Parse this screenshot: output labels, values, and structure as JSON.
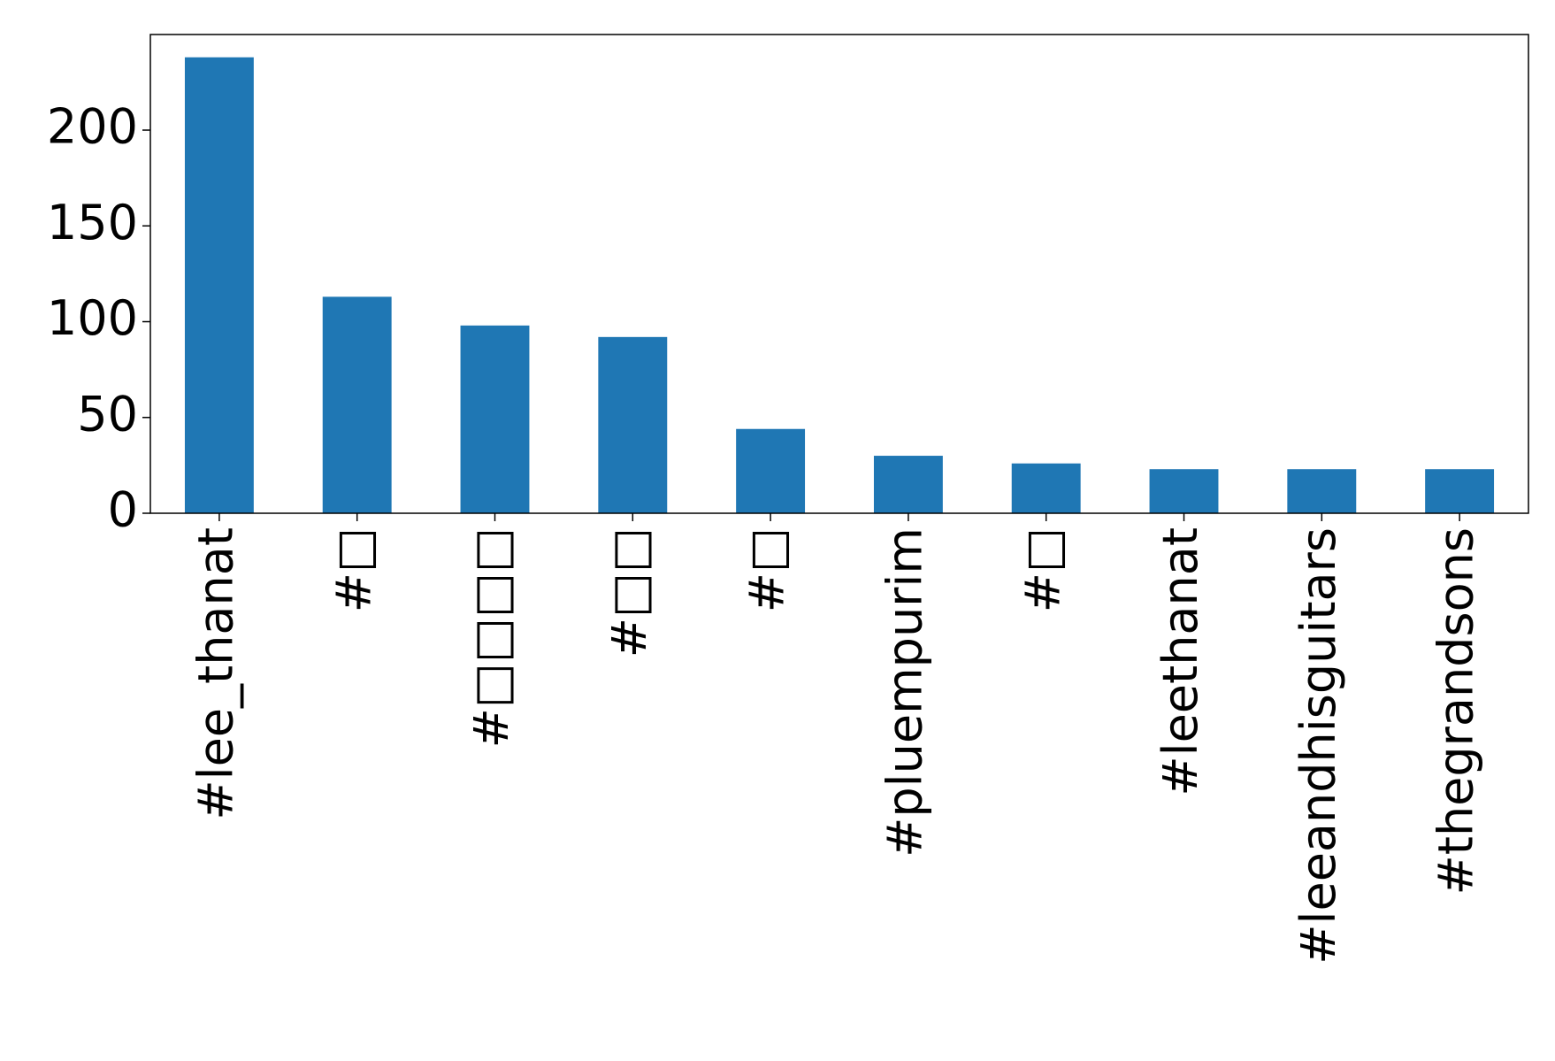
{
  "chart_data": {
    "type": "bar",
    "categories": [
      "#lee_thanat",
      "#□",
      "#□□□□",
      "#□□",
      "#□",
      "#pluempurim",
      "#□",
      "#leethanat",
      "#leeandhisguitars",
      "#thegrandsons"
    ],
    "values": [
      238,
      113,
      98,
      92,
      44,
      30,
      26,
      23,
      23,
      23
    ],
    "color": "#1f77b4",
    "ylim": [
      0,
      249.9
    ],
    "yticks": [
      0,
      50,
      100,
      150,
      200
    ],
    "grid": false
  }
}
